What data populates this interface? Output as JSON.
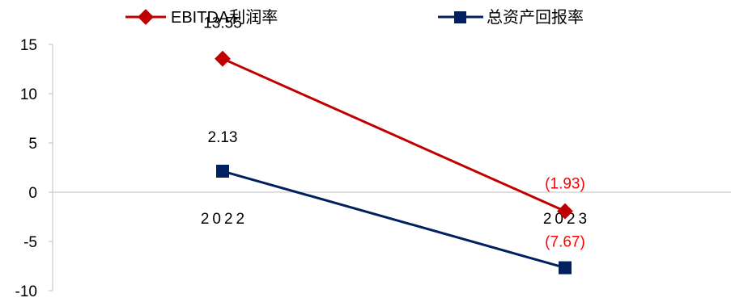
{
  "chart_data": {
    "type": "line",
    "categories": [
      "2022",
      "2023"
    ],
    "series": [
      {
        "name": "EBITDA利润率",
        "values": [
          13.55,
          -1.93
        ],
        "labels": [
          "13.55",
          "(1.93)"
        ],
        "color": "#C00000",
        "label_colors": [
          "#000000",
          "#FF0000"
        ],
        "marker": "diamond"
      },
      {
        "name": "总资产回报率",
        "values": [
          2.13,
          -7.67
        ],
        "labels": [
          "2.13",
          "(7.67)"
        ],
        "color": "#002060",
        "label_colors": [
          "#000000",
          "#FF0000"
        ],
        "marker": "square"
      }
    ],
    "yticks": [
      "15",
      "10",
      "5",
      "0",
      "-5",
      "-10"
    ],
    "ylim": [
      -10,
      15
    ],
    "grid": false,
    "legend_position": "top"
  }
}
